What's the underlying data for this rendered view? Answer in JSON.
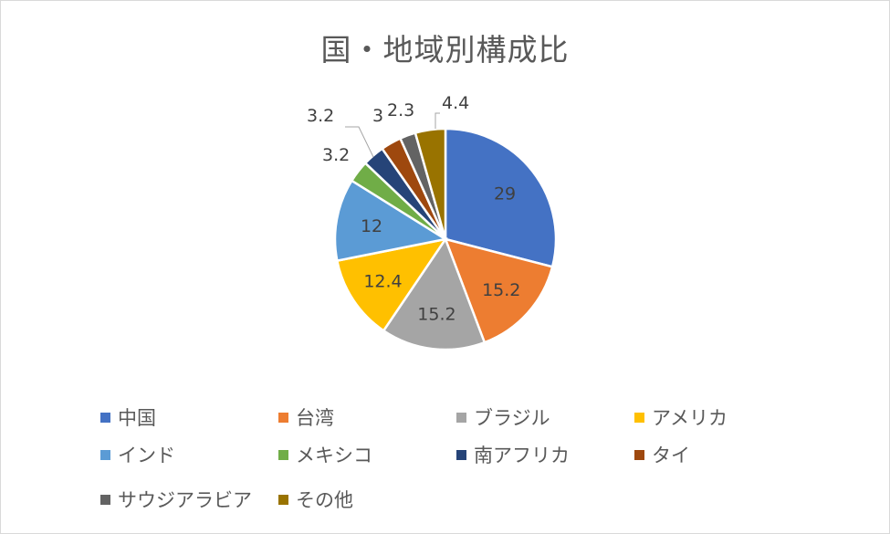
{
  "chart_data": {
    "type": "pie",
    "title": "国・地域別構成比",
    "categories": [
      "中国",
      "台湾",
      "ブラジル",
      "アメリカ",
      "インド",
      "メキシコ",
      "南アフリカ",
      "タイ",
      "サウジアラビア",
      "その他"
    ],
    "values": [
      29,
      15.2,
      15.2,
      12.4,
      12,
      3.2,
      3.2,
      3,
      2.3,
      4.4
    ],
    "data_labels": [
      "29",
      "15.2",
      "15.2",
      "12.4",
      "12",
      "3.2",
      "3.2",
      "3",
      "2.3",
      "4.4"
    ],
    "colors": [
      "#4472C4",
      "#ED7D31",
      "#A5A5A5",
      "#FFC000",
      "#5B9BD5",
      "#70AD47",
      "#264478",
      "#9E480E",
      "#636363",
      "#997300"
    ],
    "legend_position": "bottom"
  }
}
